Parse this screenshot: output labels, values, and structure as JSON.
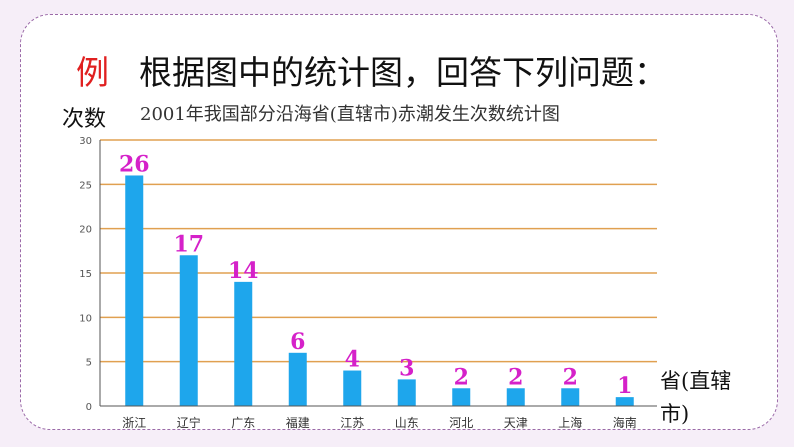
{
  "slide": {
    "lead": "例",
    "heading": "根据图中的统计图，回答下列问题："
  },
  "chart_data": {
    "type": "bar",
    "title": "2001年我国部分沿海省(直辖市)赤潮发生次数统计图",
    "ylabel": "次数",
    "xlabel": "省(直辖市)",
    "categories": [
      "浙江",
      "辽宁",
      "广东",
      "福建",
      "江苏",
      "山东",
      "河北",
      "天津",
      "上海",
      "海南"
    ],
    "values": [
      26,
      17,
      14,
      6,
      4,
      3,
      2,
      2,
      2,
      1
    ],
    "ylim": [
      0,
      30
    ],
    "yticks": [
      0,
      5,
      10,
      15,
      20,
      25,
      30
    ],
    "grid": true,
    "colors": {
      "bar": "#1ea6ec",
      "label": "#d521c9",
      "grid": "#e0a050",
      "axis": "#555555"
    }
  }
}
